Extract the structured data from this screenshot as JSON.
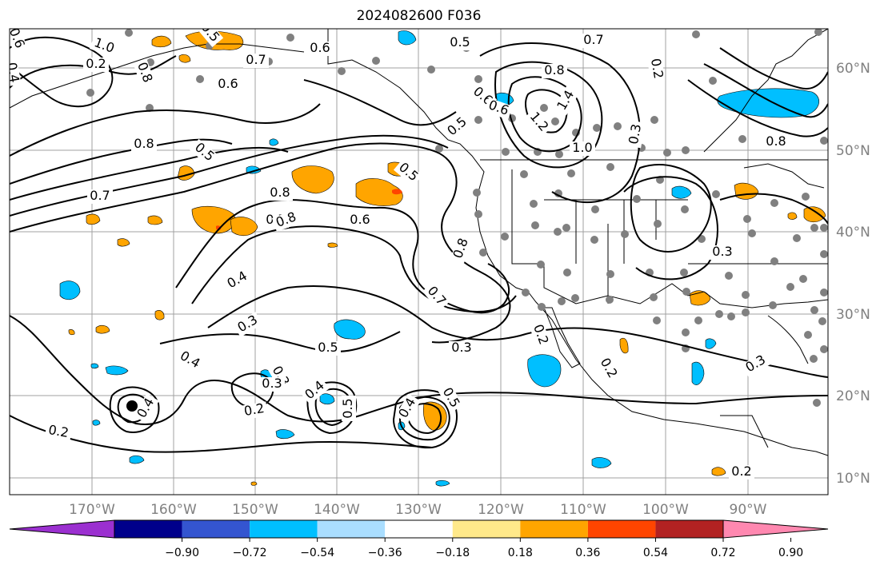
{
  "title": "2024082600 F036",
  "colors": {
    "coast": "#000000",
    "grid": "#a0a0a0",
    "station_dot": "#808080",
    "contour": "#000000"
  },
  "lat_labels": [
    "60°N",
    "50°N",
    "40°N",
    "30°N",
    "20°N",
    "10°N"
  ],
  "lon_labels": [
    "170°W",
    "160°W",
    "150°W",
    "140°W",
    "130°W",
    "120°W",
    "110°W",
    "100°W",
    "90°W"
  ],
  "contour_labels": [
    "0.6",
    "1.0",
    "0.8",
    "0.5",
    "0.6",
    "0.7",
    "0.4",
    "0.2",
    "0.6",
    "0.5",
    "0.8",
    "0.7",
    "0.5",
    "0.8",
    "0.7",
    "0.8",
    "0.6",
    "0.5",
    "0.4",
    "0.3",
    "0.5",
    "0.3",
    "0.7",
    "0.8",
    "0.4",
    "0.3",
    "0.2",
    "0.4",
    "0.2",
    "0.3",
    "0.4",
    "0.5",
    "0.2",
    "0.4",
    "0.5",
    "0.2",
    "0.3",
    "0.3",
    "0.2",
    "0.6",
    "0.5",
    "0.8",
    "1.0",
    "0.2",
    "0.8",
    "0.6",
    "1.2",
    "1.4",
    "0.7",
    "0.3"
  ],
  "colorbar": {
    "ticks": [
      "−0.90",
      "−0.72",
      "−0.54",
      "−0.36",
      "−0.18",
      "0.18",
      "0.36",
      "0.54",
      "0.72",
      "0.90"
    ],
    "colors": [
      "#9b30d0",
      "#00008b",
      "#3455d0",
      "#00bfff",
      "#aadeff",
      "#ffffff",
      "#ffe98a",
      "#ffa500",
      "#ff4500",
      "#b22222",
      "#ff88b0"
    ]
  }
}
